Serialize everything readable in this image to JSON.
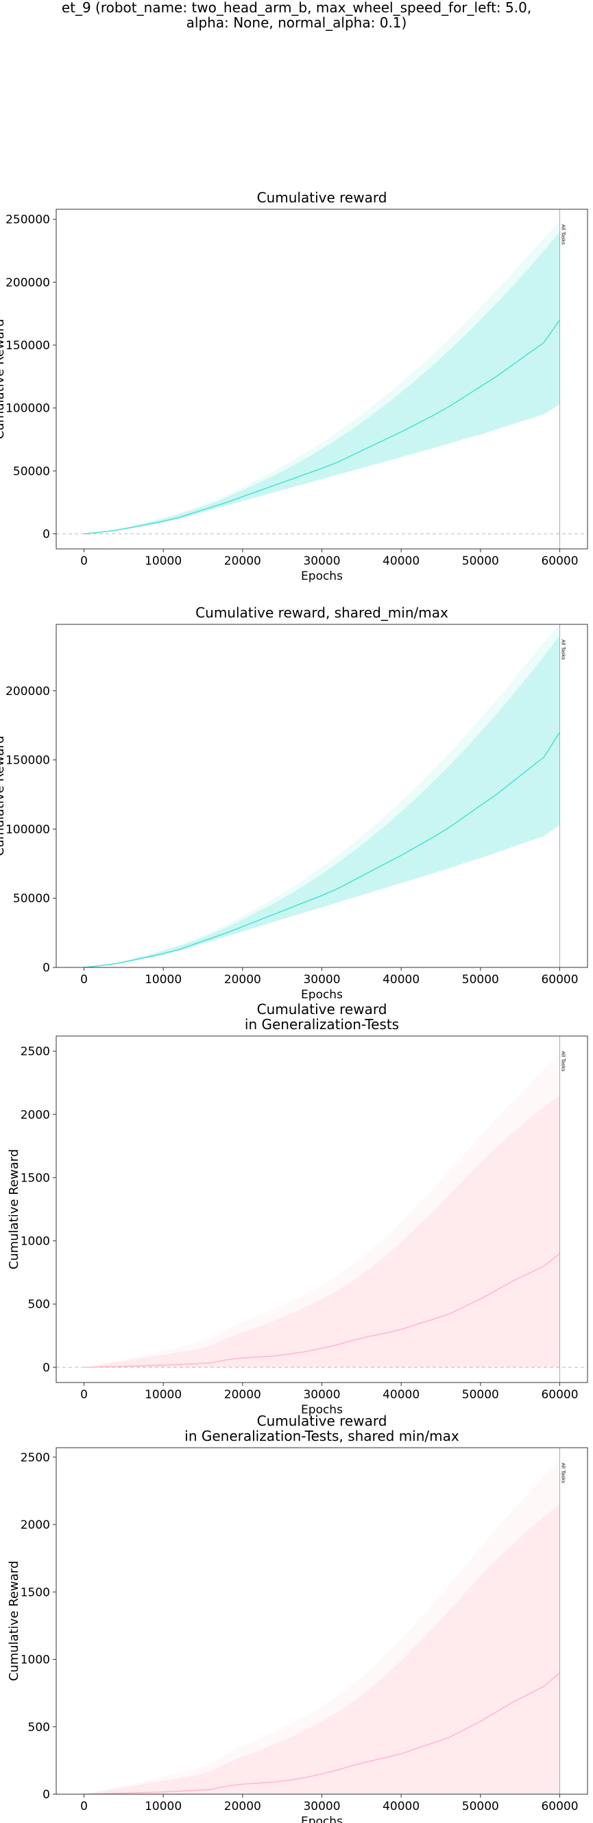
{
  "suptitle": {
    "line1": "et_9 (robot_name: two_head_arm_b, max_wheel_speed_for_left: 5.0,",
    "line2": "alpha: None, normal_alpha: 0.1)"
  },
  "chart_data": [
    {
      "type": "line",
      "title": [
        "Cumulative reward"
      ],
      "xlabel": "Epochs",
      "ylabel": "Cumulative Reward",
      "xlim": [
        -3500,
        63500
      ],
      "ylim": [
        -12000,
        258000
      ],
      "xticks": [
        0,
        10000,
        20000,
        30000,
        40000,
        50000,
        60000
      ],
      "yticks": [
        0,
        50000,
        100000,
        150000,
        200000,
        250000
      ],
      "zero_line": true,
      "vline": {
        "x": 60000,
        "label": "All Tasks"
      },
      "color": "#40e0d0",
      "series": [
        {
          "x": [
            0,
            2000,
            4000,
            6000,
            8000,
            10000,
            12000,
            14000,
            16000,
            18000,
            20000,
            22000,
            24000,
            26000,
            28000,
            30000,
            32000,
            34000,
            36000,
            38000,
            40000,
            42000,
            44000,
            46000,
            48000,
            50000,
            52000,
            54000,
            56000,
            58000,
            60000
          ],
          "y": [
            0,
            1200,
            2800,
            5000,
            7500,
            10000,
            13000,
            17000,
            21000,
            25000,
            29500,
            34000,
            38500,
            43000,
            47500,
            52000,
            57000,
            63000,
            69000,
            75000,
            81000,
            87500,
            94000,
            101000,
            109000,
            117000,
            125000,
            134000,
            143000,
            152000,
            170000
          ],
          "lower": [
            0,
            1100,
            2500,
            4500,
            6800,
            9000,
            12000,
            15500,
            19000,
            22500,
            26000,
            29500,
            33000,
            36500,
            40000,
            43500,
            47000,
            50500,
            54000,
            57500,
            61000,
            64500,
            68000,
            71500,
            75500,
            79000,
            83000,
            87000,
            91000,
            95000,
            103000
          ],
          "upper": [
            0,
            1400,
            3200,
            5800,
            8800,
            12000,
            15500,
            19500,
            24000,
            29000,
            34500,
            40500,
            46500,
            53000,
            60000,
            67500,
            75500,
            84000,
            93000,
            102500,
            112500,
            123000,
            134000,
            145500,
            157500,
            170000,
            183000,
            196500,
            210500,
            225000,
            240000
          ],
          "outer_upper": [
            0,
            1500,
            3400,
            6100,
            9300,
            12800,
            16500,
            20800,
            25600,
            31000,
            37000,
            43500,
            50000,
            57000,
            64500,
            72500,
            81000,
            90000,
            99500,
            109500,
            120000,
            131000,
            142500,
            154500,
            167000,
            180000,
            193500,
            207000,
            221000,
            235000,
            248000
          ]
        }
      ]
    },
    {
      "type": "line",
      "title": [
        "Cumulative reward, shared_min/max"
      ],
      "xlabel": "Epochs",
      "ylabel": "Cumulative Reward",
      "xlim": [
        -3500,
        63500
      ],
      "ylim": [
        0,
        248000
      ],
      "xticks": [
        0,
        10000,
        20000,
        30000,
        40000,
        50000,
        60000
      ],
      "yticks": [
        0,
        50000,
        100000,
        150000,
        200000
      ],
      "zero_line": false,
      "vline": {
        "x": 60000,
        "label": "All Tasks"
      },
      "color": "#40e0d0",
      "series": [
        {
          "x": [
            0,
            2000,
            4000,
            6000,
            8000,
            10000,
            12000,
            14000,
            16000,
            18000,
            20000,
            22000,
            24000,
            26000,
            28000,
            30000,
            32000,
            34000,
            36000,
            38000,
            40000,
            42000,
            44000,
            46000,
            48000,
            50000,
            52000,
            54000,
            56000,
            58000,
            60000
          ],
          "y": [
            0,
            1200,
            2800,
            5000,
            7500,
            10000,
            13000,
            17000,
            21000,
            25000,
            29500,
            34000,
            38500,
            43000,
            47500,
            52000,
            57000,
            63000,
            69000,
            75000,
            81000,
            87500,
            94000,
            101000,
            109000,
            117000,
            125000,
            134000,
            143000,
            152000,
            170000
          ],
          "lower": [
            0,
            1100,
            2500,
            4500,
            6800,
            9000,
            12000,
            15500,
            19000,
            22500,
            26000,
            29500,
            33000,
            36500,
            40000,
            43500,
            47000,
            50500,
            54000,
            57500,
            61000,
            64500,
            68000,
            71500,
            75500,
            79000,
            83000,
            87000,
            91000,
            95000,
            103000
          ],
          "upper": [
            0,
            1400,
            3200,
            5800,
            8800,
            12000,
            15500,
            19500,
            24000,
            29000,
            34500,
            40500,
            46500,
            53000,
            60000,
            67500,
            75500,
            84000,
            93000,
            102500,
            112500,
            123000,
            134000,
            145500,
            157500,
            170000,
            183000,
            196500,
            210500,
            225000,
            240000
          ],
          "outer_upper": [
            0,
            1500,
            3400,
            6100,
            9300,
            12800,
            16500,
            20800,
            25600,
            31000,
            37000,
            43500,
            50000,
            57000,
            64500,
            72500,
            81000,
            90000,
            99500,
            109500,
            120000,
            131000,
            142500,
            154500,
            167000,
            180000,
            193500,
            207000,
            221000,
            235000,
            248000
          ]
        }
      ]
    },
    {
      "type": "line",
      "title": [
        "Cumulative reward",
        "in Generalization-Tests"
      ],
      "xlabel": "Epochs",
      "ylabel": "Cumulative Reward",
      "xlim": [
        -3500,
        63500
      ],
      "ylim": [
        -120,
        2620
      ],
      "xticks": [
        0,
        10000,
        20000,
        30000,
        40000,
        50000,
        60000
      ],
      "yticks": [
        0,
        500,
        1000,
        1500,
        2000,
        2500
      ],
      "zero_line": true,
      "vline": {
        "x": 60000,
        "label": "All Tasks"
      },
      "color": "#ffb6c1",
      "series": [
        {
          "x": [
            0,
            2000,
            4000,
            6000,
            8000,
            10000,
            12000,
            14000,
            16000,
            18000,
            20000,
            22000,
            24000,
            26000,
            28000,
            30000,
            32000,
            34000,
            36000,
            38000,
            40000,
            42000,
            44000,
            46000,
            48000,
            50000,
            52000,
            54000,
            56000,
            58000,
            60000
          ],
          "y": [
            0,
            3,
            6,
            9,
            13,
            17,
            22,
            28,
            35,
            60,
            75,
            82,
            90,
            105,
            125,
            150,
            180,
            215,
            245,
            270,
            300,
            340,
            380,
            420,
            480,
            540,
            610,
            680,
            740,
            800,
            900
          ],
          "lower": [
            0,
            0,
            0,
            0,
            0,
            0,
            0,
            0,
            0,
            0,
            0,
            0,
            0,
            0,
            0,
            0,
            0,
            0,
            0,
            0,
            0,
            0,
            0,
            0,
            0,
            0,
            0,
            0,
            0,
            0,
            0
          ],
          "upper": [
            0,
            20,
            40,
            60,
            80,
            100,
            120,
            140,
            170,
            230,
            280,
            320,
            370,
            420,
            480,
            540,
            610,
            690,
            780,
            880,
            990,
            1110,
            1230,
            1360,
            1490,
            1620,
            1740,
            1850,
            1960,
            2060,
            2150
          ],
          "outer_upper": [
            0,
            25,
            50,
            75,
            100,
            130,
            160,
            190,
            230,
            300,
            360,
            410,
            460,
            520,
            580,
            650,
            730,
            820,
            920,
            1030,
            1150,
            1280,
            1410,
            1550,
            1690,
            1830,
            1970,
            2100,
            2230,
            2360,
            2480
          ]
        }
      ]
    },
    {
      "type": "line",
      "title": [
        "Cumulative reward",
        "in Generalization-Tests, shared min/max"
      ],
      "xlabel": "Epochs",
      "ylabel": "Cumulative Reward",
      "xlim": [
        -3500,
        63500
      ],
      "ylim": [
        0,
        2570
      ],
      "xticks": [
        0,
        10000,
        20000,
        30000,
        40000,
        50000,
        60000
      ],
      "yticks": [
        0,
        500,
        1000,
        1500,
        2000,
        2500
      ],
      "zero_line": false,
      "vline": {
        "x": 60000,
        "label": "All Tasks"
      },
      "color": "#ffb6c1",
      "series": [
        {
          "x": [
            0,
            2000,
            4000,
            6000,
            8000,
            10000,
            12000,
            14000,
            16000,
            18000,
            20000,
            22000,
            24000,
            26000,
            28000,
            30000,
            32000,
            34000,
            36000,
            38000,
            40000,
            42000,
            44000,
            46000,
            48000,
            50000,
            52000,
            54000,
            56000,
            58000,
            60000
          ],
          "y": [
            0,
            3,
            6,
            9,
            13,
            17,
            22,
            28,
            35,
            60,
            75,
            82,
            90,
            105,
            125,
            150,
            180,
            215,
            245,
            270,
            300,
            340,
            380,
            420,
            480,
            540,
            610,
            680,
            740,
            800,
            900
          ],
          "lower": [
            0,
            0,
            0,
            0,
            0,
            0,
            0,
            0,
            0,
            0,
            0,
            0,
            0,
            0,
            0,
            0,
            0,
            0,
            0,
            0,
            0,
            0,
            0,
            0,
            0,
            0,
            0,
            0,
            0,
            0,
            0
          ],
          "upper": [
            0,
            20,
            40,
            60,
            80,
            100,
            120,
            140,
            170,
            230,
            280,
            320,
            370,
            420,
            480,
            540,
            610,
            690,
            780,
            880,
            990,
            1110,
            1230,
            1360,
            1490,
            1620,
            1740,
            1850,
            1960,
            2060,
            2150
          ],
          "outer_upper": [
            0,
            25,
            50,
            75,
            100,
            130,
            160,
            190,
            230,
            300,
            360,
            410,
            460,
            520,
            580,
            650,
            730,
            820,
            920,
            1030,
            1150,
            1280,
            1410,
            1550,
            1690,
            1830,
            1970,
            2100,
            2230,
            2360,
            2480
          ]
        }
      ]
    }
  ]
}
